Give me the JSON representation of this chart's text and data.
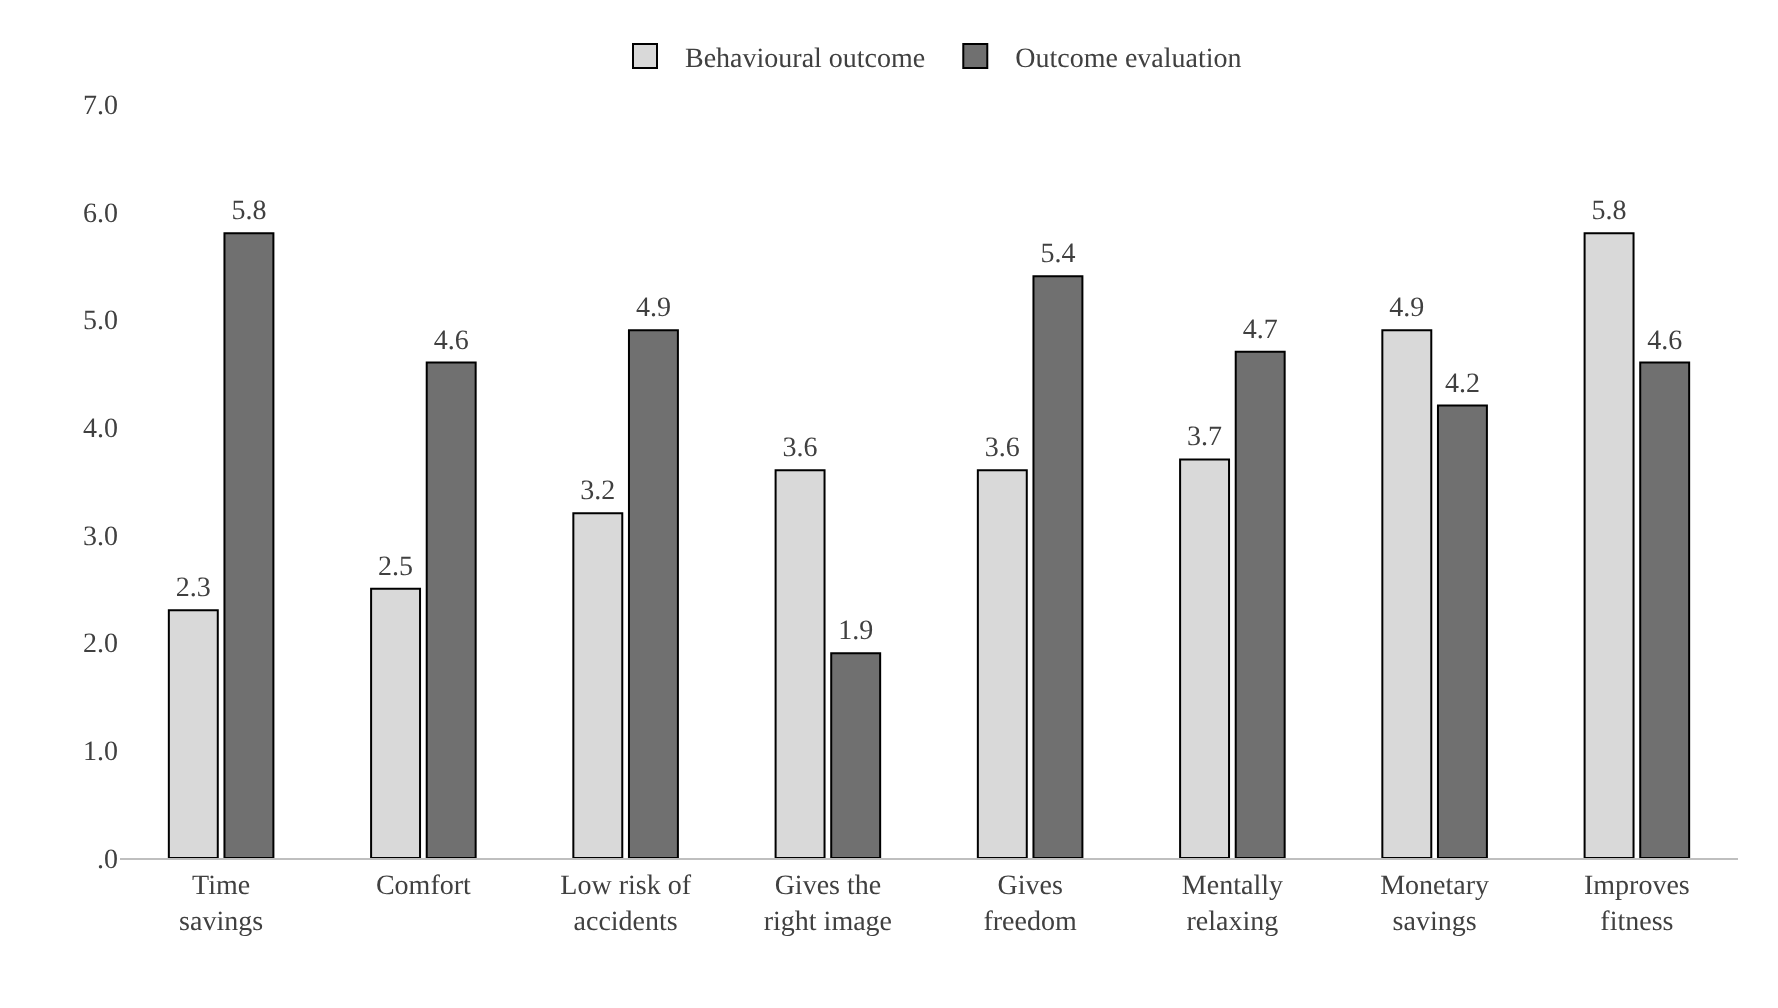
{
  "chart_data": {
    "type": "bar",
    "categories": [
      "Time savings",
      "Comfort",
      "Low risk of accidents",
      "Gives the right image",
      "Gives freedom",
      "Mentally relaxing",
      "Monetary savings",
      "Improves fitness"
    ],
    "series": [
      {
        "name": "Behavioural outcome",
        "color": "#d9d9d9",
        "values": [
          2.3,
          2.5,
          3.2,
          3.6,
          3.6,
          3.7,
          4.9,
          5.8
        ]
      },
      {
        "name": "Outcome evaluation",
        "color": "#707070",
        "values": [
          5.8,
          4.6,
          4.9,
          1.9,
          5.4,
          4.7,
          4.2,
          4.6
        ]
      }
    ],
    "ylim": [
      0,
      7
    ],
    "yticks": [
      {
        "value": 0,
        "label": ".0"
      },
      {
        "value": 1,
        "label": "1.0"
      },
      {
        "value": 2,
        "label": "2.0"
      },
      {
        "value": 3,
        "label": "3.0"
      },
      {
        "value": 4,
        "label": "4.0"
      },
      {
        "value": 5,
        "label": "5.0"
      },
      {
        "value": 6,
        "label": "6.0"
      },
      {
        "value": 7,
        "label": "7.0"
      }
    ],
    "legend": "top",
    "data_labels": true
  }
}
